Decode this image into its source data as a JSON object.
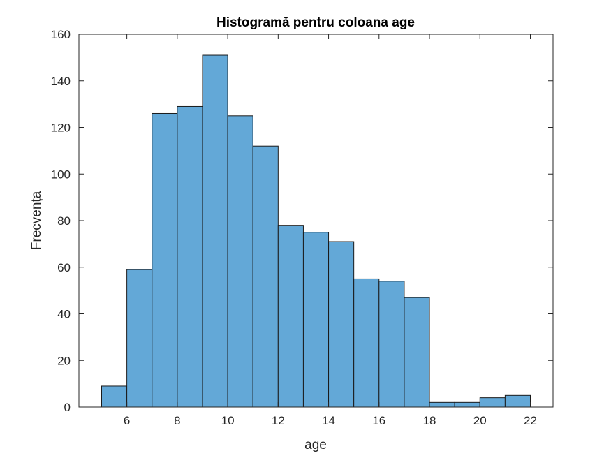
{
  "chart_data": {
    "type": "bar",
    "title": "Histogramă pentru coloana age",
    "xlabel": "age",
    "ylabel": "Frecvența",
    "bin_edges": [
      5,
      6,
      7,
      8,
      9,
      10,
      11,
      12,
      13,
      14,
      15,
      16,
      17,
      18,
      19,
      20,
      21,
      22
    ],
    "values": [
      9,
      59,
      126,
      129,
      151,
      125,
      112,
      78,
      75,
      71,
      55,
      54,
      47,
      2,
      2,
      4,
      5
    ],
    "xlim": [
      4.1,
      22.9
    ],
    "ylim": [
      0,
      160
    ],
    "xticks": [
      6,
      8,
      10,
      12,
      14,
      16,
      18,
      20,
      22
    ],
    "yticks": [
      0,
      20,
      40,
      60,
      80,
      100,
      120,
      140,
      160
    ],
    "grid": false,
    "bar_color": "#63a8d7",
    "edge_color": "#1a1a1a"
  }
}
